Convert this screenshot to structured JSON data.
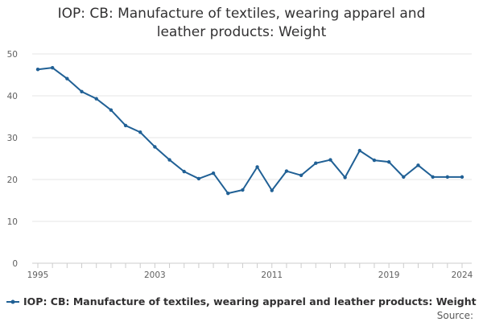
{
  "chart_data": {
    "type": "line",
    "title_lines": [
      "IOP: CB: Manufacture of textiles, wearing apparel and",
      "leather products: Weight"
    ],
    "x": [
      1995,
      1996,
      1997,
      1998,
      1999,
      2000,
      2001,
      2002,
      2003,
      2004,
      2005,
      2006,
      2007,
      2008,
      2009,
      2010,
      2011,
      2012,
      2013,
      2014,
      2015,
      2016,
      2017,
      2018,
      2019,
      2020,
      2021,
      2022,
      2023,
      2024
    ],
    "series": [
      {
        "name": "IOP: CB: Manufacture of textiles, wearing apparel and leather products: Weight",
        "color": "#206095",
        "values": [
          46.3,
          46.7,
          44.1,
          41.0,
          39.3,
          36.6,
          32.9,
          31.3,
          27.8,
          24.7,
          21.9,
          20.2,
          21.5,
          16.7,
          17.5,
          23.0,
          17.4,
          22.0,
          21.0,
          23.9,
          24.7,
          20.5,
          26.9,
          24.6,
          24.2,
          20.6,
          23.4,
          20.6,
          20.6,
          20.6
        ]
      }
    ],
    "x_tick_labels": [
      "1995",
      "2003",
      "2011",
      "2019",
      "2024"
    ],
    "y_tick_labels": [
      "0",
      "10",
      "20",
      "30",
      "40",
      "50"
    ],
    "xlim": [
      1995,
      2024
    ],
    "ylim": [
      0,
      50
    ],
    "grid": true,
    "legend_position": "bottom",
    "source_label": "Source:"
  }
}
